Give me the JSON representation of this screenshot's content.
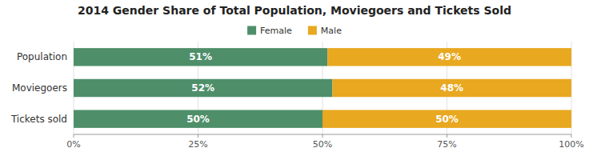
{
  "chart_data": {
    "type": "bar",
    "orientation": "horizontal",
    "stacked": true,
    "title": "2014 Gender Share of Total Population, Moviegoers and Tickets Sold",
    "categories": [
      "Population",
      "Moviegoers",
      "Tickets sold"
    ],
    "series": [
      {
        "name": "Female",
        "color": "#4e8f6a",
        "values": [
          51,
          52,
          50
        ],
        "value_labels": [
          "51%",
          "52%",
          "50%"
        ]
      },
      {
        "name": "Male",
        "color": "#e8a820",
        "values": [
          49,
          48,
          50
        ],
        "value_labels": [
          "49%",
          "48%",
          "50%"
        ]
      }
    ],
    "xlim": [
      0,
      100
    ],
    "xticks": [
      {
        "value": 0,
        "label": "0%"
      },
      {
        "value": 25,
        "label": "25%"
      },
      {
        "value": 50,
        "label": "50%"
      },
      {
        "value": 75,
        "label": "75%"
      },
      {
        "value": 100,
        "label": "100%"
      }
    ],
    "grid": true,
    "legend": "top",
    "data_labels": true
  }
}
